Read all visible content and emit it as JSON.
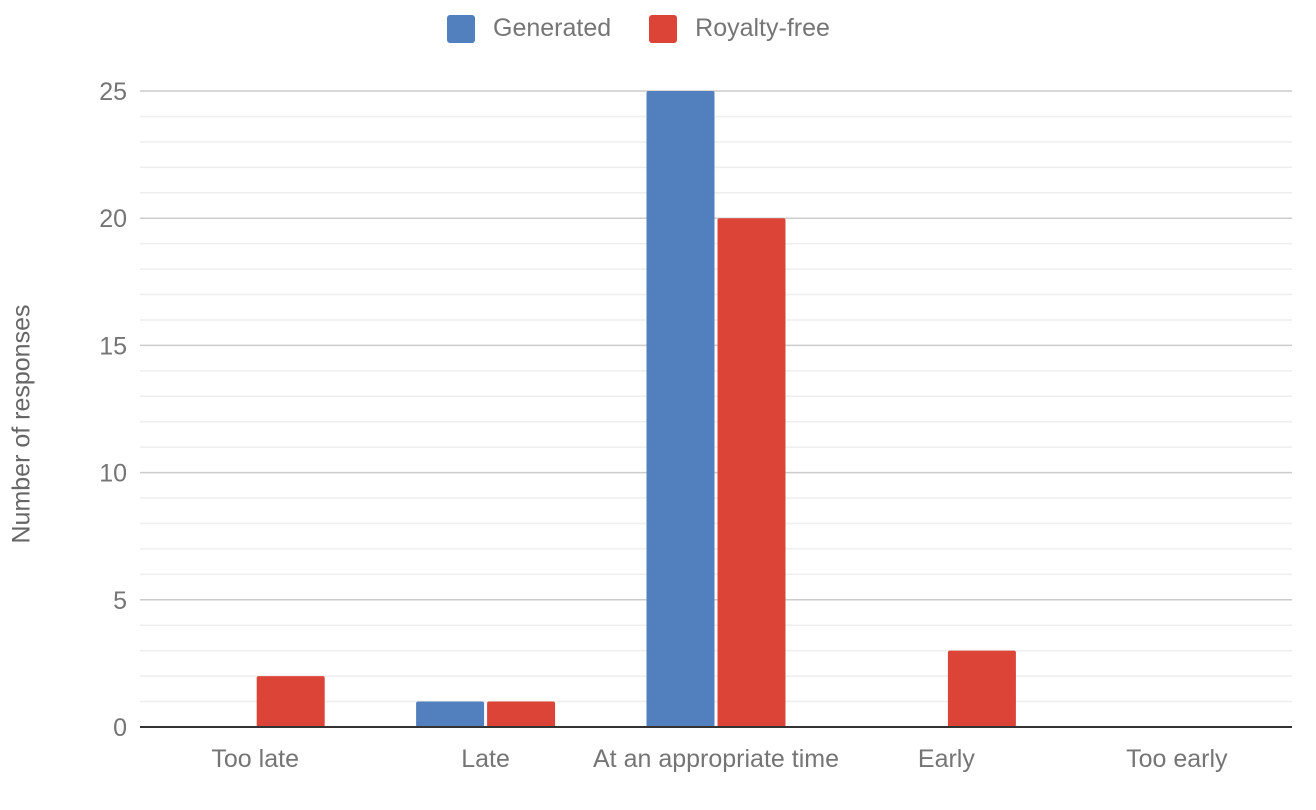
{
  "chart_data": {
    "type": "bar",
    "title": "",
    "xlabel": "",
    "ylabel": "Number of responses",
    "ylim": [
      0,
      25
    ],
    "yticks": [
      0,
      5,
      10,
      15,
      20,
      25
    ],
    "categories": [
      "Too late",
      "Late",
      "At an appropriate time",
      "Early",
      "Too early"
    ],
    "series": [
      {
        "name": "Generated",
        "color": "#527fbd",
        "values": [
          0,
          1,
          25,
          0,
          0
        ]
      },
      {
        "name": "Royalty-free",
        "color": "#db4437",
        "values": [
          2,
          1,
          20,
          3,
          0
        ]
      }
    ],
    "legend_position": "top",
    "grid": true
  }
}
